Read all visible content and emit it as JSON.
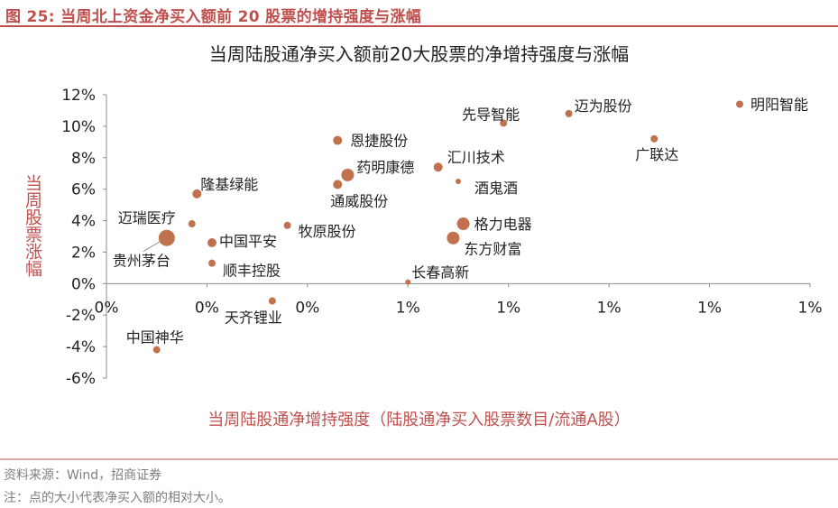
{
  "figure_title": "图 25:  当周北上资金净买入额前 20 股票的增持强度与涨幅",
  "chart_data": {
    "type": "scatter",
    "title": "当周陆股通净买入额前20大股票的净增持强度与涨幅",
    "xlabel": "当周陆股通净增持强度（陆股通净买入股票数目/流通A股）",
    "ylabel": "当周股票涨幅",
    "x_tick_labels": [
      "0%",
      "0%",
      "0%",
      "1%",
      "1%",
      "1%",
      "1%",
      "1%"
    ],
    "xlim": [
      0.0,
      0.014
    ],
    "y_ticks": [
      "12%",
      "10%",
      "8%",
      "6%",
      "4%",
      "2%",
      "0%",
      "-2%",
      "-4%",
      "-6%"
    ],
    "ylim": [
      -6,
      12
    ],
    "point_color": "#c0714d",
    "points": [
      {
        "name": "明阳智能",
        "x": 0.0126,
        "y": 11.4,
        "size": "small"
      },
      {
        "name": "迈为股份",
        "x": 0.0092,
        "y": 10.8,
        "size": "small"
      },
      {
        "name": "先导智能",
        "x": 0.0079,
        "y": 10.2,
        "size": "small"
      },
      {
        "name": "广联达",
        "x": 0.0109,
        "y": 9.2,
        "size": "small"
      },
      {
        "name": "恩捷股份",
        "x": 0.0046,
        "y": 9.1,
        "size": "medium"
      },
      {
        "name": "药明康德",
        "x": 0.0048,
        "y": 6.9,
        "size": "large"
      },
      {
        "name": "汇川技术",
        "x": 0.0066,
        "y": 7.4,
        "size": "medium"
      },
      {
        "name": "通威股份",
        "x": 0.0046,
        "y": 6.3,
        "size": "medium"
      },
      {
        "name": "酒鬼酒",
        "x": 0.007,
        "y": 6.5,
        "size": "tiny"
      },
      {
        "name": "隆基绿能",
        "x": 0.0018,
        "y": 5.7,
        "size": "medium"
      },
      {
        "name": "迈瑞医疗",
        "x": 0.0017,
        "y": 3.8,
        "size": "small"
      },
      {
        "name": "格力电器",
        "x": 0.0071,
        "y": 3.8,
        "size": "large"
      },
      {
        "name": "牧原股份",
        "x": 0.0036,
        "y": 3.7,
        "size": "small"
      },
      {
        "name": "贵州茅台",
        "x": 0.0012,
        "y": 2.9,
        "size": "xlarge"
      },
      {
        "name": "东方财富",
        "x": 0.0069,
        "y": 2.9,
        "size": "large"
      },
      {
        "name": "中国平安",
        "x": 0.0021,
        "y": 2.6,
        "size": "medium"
      },
      {
        "name": "顺丰控股",
        "x": 0.0021,
        "y": 1.3,
        "size": "small"
      },
      {
        "name": "长春高新",
        "x": 0.006,
        "y": 0.1,
        "size": "tiny"
      },
      {
        "name": "天齐锂业",
        "x": 0.0033,
        "y": -1.1,
        "size": "small"
      },
      {
        "name": "中国神华",
        "x": 0.001,
        "y": -4.2,
        "size": "small"
      }
    ]
  },
  "footer": {
    "source": "资料来源：Wind，招商证券",
    "note": "注：点的大小代表净买入额的相对大小。"
  }
}
